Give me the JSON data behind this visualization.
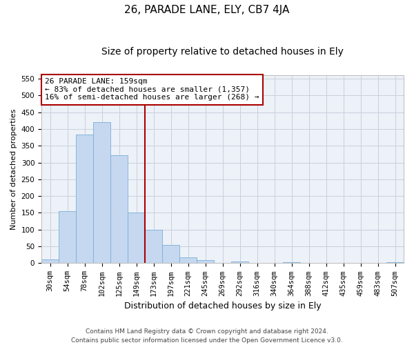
{
  "title": "26, PARADE LANE, ELY, CB7 4JA",
  "subtitle": "Size of property relative to detached houses in Ely",
  "xlabel": "Distribution of detached houses by size in Ely",
  "ylabel": "Number of detached properties",
  "categories": [
    "30sqm",
    "54sqm",
    "78sqm",
    "102sqm",
    "125sqm",
    "149sqm",
    "173sqm",
    "197sqm",
    "221sqm",
    "245sqm",
    "269sqm",
    "292sqm",
    "316sqm",
    "340sqm",
    "364sqm",
    "388sqm",
    "412sqm",
    "435sqm",
    "459sqm",
    "483sqm",
    "507sqm"
  ],
  "values": [
    12,
    155,
    383,
    420,
    322,
    150,
    100,
    55,
    18,
    10,
    0,
    5,
    0,
    0,
    3,
    0,
    0,
    0,
    0,
    0,
    3
  ],
  "bar_color": "#c5d8f0",
  "bar_edge_color": "#7aaed4",
  "grid_color": "#c8d0dc",
  "background_color": "#edf1f8",
  "vline_x": 6.0,
  "vline_color": "#aa0000",
  "annotation_text": "26 PARADE LANE: 159sqm\n← 83% of detached houses are smaller (1,357)\n16% of semi-detached houses are larger (268) →",
  "annotation_box_facecolor": "#ffffff",
  "annotation_box_edgecolor": "#aa0000",
  "ylim": [
    0,
    560
  ],
  "yticks": [
    0,
    50,
    100,
    150,
    200,
    250,
    300,
    350,
    400,
    450,
    500,
    550
  ],
  "footer_text": "Contains HM Land Registry data © Crown copyright and database right 2024.\nContains public sector information licensed under the Open Government Licence v3.0.",
  "title_fontsize": 11,
  "subtitle_fontsize": 10,
  "xlabel_fontsize": 9,
  "ylabel_fontsize": 8,
  "tick_fontsize": 7.5,
  "annotation_fontsize": 8,
  "footer_fontsize": 6.5
}
